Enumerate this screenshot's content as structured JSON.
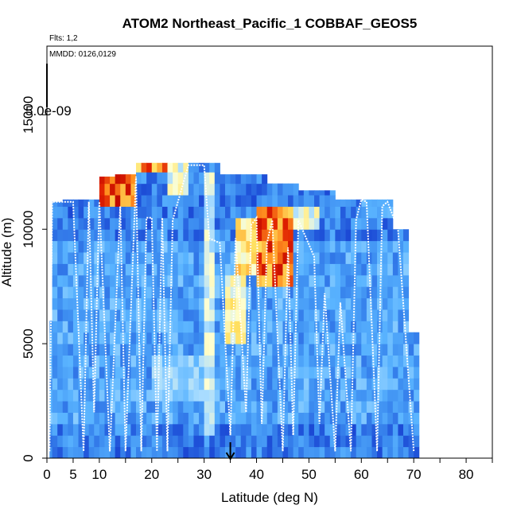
{
  "chart_data": {
    "type": "heatmap",
    "title": "ATOM2 Northeast_Pacific_1 COBBAF_GEOS5",
    "annotations": {
      "flights": "Flts: 1,2",
      "dates": "MMDD: 0126,0129",
      "colorbar_value": "5.0e-09"
    },
    "xlabel": "Latitude (deg N)",
    "ylabel": "Altitude (m)",
    "xlim": [
      0,
      85
    ],
    "ylim": [
      0,
      18000
    ],
    "x_ticks": [
      0,
      5,
      10,
      20,
      30,
      40,
      50,
      60,
      70,
      80
    ],
    "x_minor_ticks": [
      0,
      5,
      10,
      15,
      20,
      25,
      30,
      35,
      40,
      45,
      50,
      55,
      60,
      65,
      70,
      75,
      80,
      85
    ],
    "y_ticks": [
      0,
      5000,
      10000,
      15000
    ],
    "marker_latitude": 35,
    "grid": false,
    "colormap": [
      "#0000b0",
      "#1e50d8",
      "#3c8cf0",
      "#5ab4ff",
      "#a8dcff",
      "#ffffd0",
      "#ffe060",
      "#ff9020",
      "#e02000",
      "#b00000"
    ],
    "columns": [
      {
        "x": [
          0.5,
          2.5
        ],
        "top": 6000
      },
      {
        "x": [
          1,
          3
        ],
        "top": 11200
      },
      {
        "x": [
          3,
          7
        ],
        "top": 11300
      },
      {
        "x": [
          7,
          10
        ],
        "top": 11300
      },
      {
        "x": [
          10,
          13
        ],
        "top": 12300
      },
      {
        "x": [
          13,
          17
        ],
        "top": 12400
      },
      {
        "x": [
          17,
          22
        ],
        "top": 12900
      },
      {
        "x": [
          22,
          27
        ],
        "top": 12900
      },
      {
        "x": [
          27,
          33
        ],
        "top": 12900
      },
      {
        "x": [
          33,
          37
        ],
        "top": 12400
      },
      {
        "x": [
          37,
          42
        ],
        "top": 12400
      },
      {
        "x": [
          42,
          48
        ],
        "top": 12000
      },
      {
        "x": [
          48,
          55
        ],
        "top": 11700
      },
      {
        "x": [
          55,
          60
        ],
        "top": 11300
      },
      {
        "x": [
          60,
          66
        ],
        "top": 11300
      },
      {
        "x": [
          66,
          69
        ],
        "top": 10000
      },
      {
        "x": [
          69,
          71
        ],
        "top": 5500
      }
    ],
    "hotspots": [
      {
        "x": [
          10,
          17
        ],
        "y": [
          11000,
          12300
        ],
        "level": 0.92
      },
      {
        "x": [
          17,
          23
        ],
        "y": [
          12300,
          12900
        ],
        "level": 0.85
      },
      {
        "x": [
          23,
          27
        ],
        "y": [
          11500,
          12900
        ],
        "level": 0.6
      },
      {
        "x": [
          30,
          32
        ],
        "y": [
          1000,
          12500
        ],
        "level": 0.55
      },
      {
        "x": [
          34,
          38
        ],
        "y": [
          5000,
          8000
        ],
        "level": 0.65
      },
      {
        "x": [
          36,
          41
        ],
        "y": [
          8000,
          10500
        ],
        "level": 0.7
      },
      {
        "x": [
          40,
          47
        ],
        "y": [
          7500,
          11000
        ],
        "level": 0.9
      },
      {
        "x": [
          47,
          52
        ],
        "y": [
          10000,
          11000
        ],
        "level": 0.6
      },
      {
        "x": [
          20,
          30
        ],
        "y": [
          2500,
          4500
        ],
        "level": 0.45
      },
      {
        "x": [
          60,
          66
        ],
        "y": [
          10500,
          11300
        ],
        "level": 0.35
      }
    ],
    "flight_track": [
      [
        0.5,
        300
      ],
      [
        1,
        11200
      ],
      [
        2,
        11200
      ],
      [
        5,
        11200
      ],
      [
        7,
        300
      ],
      [
        8,
        11200
      ],
      [
        9,
        2000
      ],
      [
        10,
        11200
      ],
      [
        12,
        300
      ],
      [
        14,
        11000
      ],
      [
        15,
        300
      ],
      [
        17,
        12300
      ],
      [
        18,
        300
      ],
      [
        19,
        10500
      ],
      [
        20,
        10500
      ],
      [
        21,
        300
      ],
      [
        22,
        10500
      ],
      [
        23,
        300
      ],
      [
        24,
        10400
      ],
      [
        27,
        12800
      ],
      [
        30,
        12800
      ],
      [
        31,
        9600
      ],
      [
        33,
        9400
      ],
      [
        35,
        1000
      ],
      [
        36,
        9600
      ],
      [
        38,
        2000
      ],
      [
        39,
        10200
      ],
      [
        40,
        10500
      ],
      [
        41,
        1500
      ],
      [
        42,
        9400
      ],
      [
        43,
        10400
      ],
      [
        45,
        300
      ],
      [
        46,
        9200
      ],
      [
        47,
        1000
      ],
      [
        48,
        10400
      ],
      [
        51,
        8800
      ],
      [
        52,
        1500
      ],
      [
        53,
        7200
      ],
      [
        55,
        300
      ],
      [
        56,
        6800
      ],
      [
        58,
        300
      ],
      [
        59,
        10400
      ],
      [
        60,
        11300
      ],
      [
        61,
        11200
      ],
      [
        63,
        300
      ],
      [
        64,
        11000
      ],
      [
        65,
        11200
      ],
      [
        67,
        10000
      ],
      [
        70,
        300
      ]
    ]
  }
}
